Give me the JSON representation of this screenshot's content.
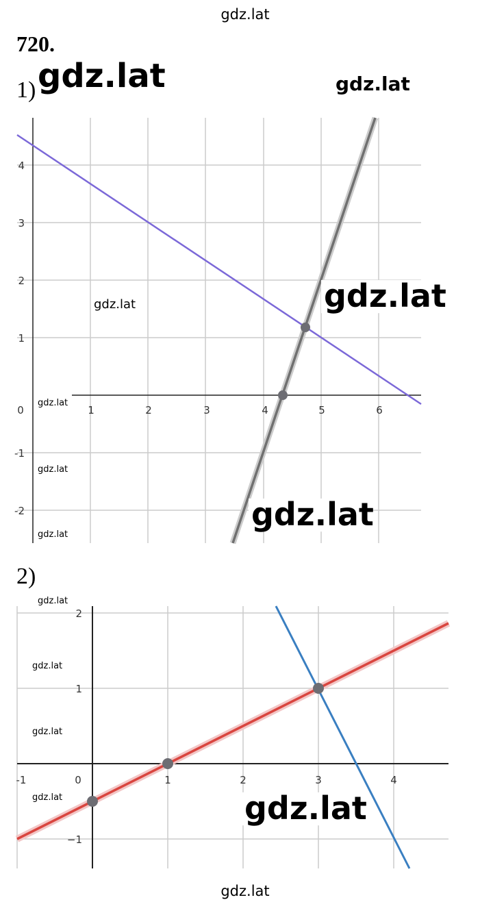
{
  "header": {
    "site": "gdz.lat"
  },
  "problem": {
    "number": "720."
  },
  "parts": [
    {
      "label": "1)",
      "x_tick_labels": [
        "0",
        "1",
        "2",
        "3",
        "4",
        "5",
        "6"
      ],
      "y_tick_labels": [
        "4",
        "3",
        "2",
        "1",
        "-1",
        "-2"
      ]
    },
    {
      "label": "2)",
      "x_tick_labels": [
        "-1",
        "0",
        "1",
        "2",
        "3",
        "4"
      ],
      "y_tick_labels": [
        "2",
        "1",
        "−1"
      ]
    }
  ],
  "watermarks": [
    "gdz.lat",
    "gdz.lat",
    "gdz.lat",
    "gdz.lat",
    "gdz.lat",
    "gdz.lat",
    "gdz.lat",
    "gdz.lat",
    "gdz.lat",
    "gdz.lat",
    "gdz.lat",
    "gdz.lat",
    "gdz.lat"
  ],
  "footer": {
    "site": "gdz.lat"
  }
}
